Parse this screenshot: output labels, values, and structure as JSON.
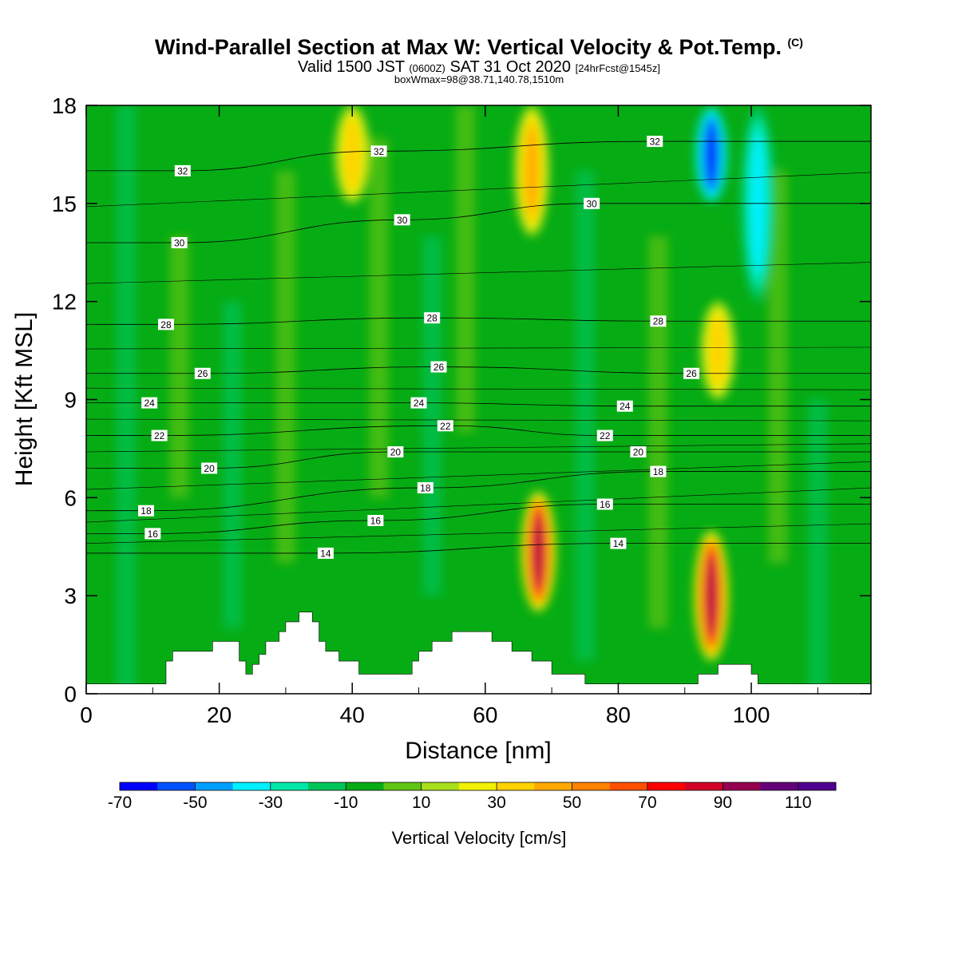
{
  "title": {
    "main": "Wind-Parallel Section at Max W: Vertical Velocity & Pot.Temp.",
    "copyright": "(C)",
    "valid_prefix": "Valid 1500 JST",
    "valid_zulu": "(0600Z)",
    "valid_date": "SAT 31 Oct 2020",
    "forecast": "[24hrFcst@1545z]",
    "boxwmax": "boxWmax=98@38.71,140.78,1510m"
  },
  "colors": {
    "background": "#ffffff",
    "base_fill": "#06ac14",
    "terrain": "#ffffff",
    "contour": "#000000"
  },
  "chart_data": {
    "type": "heatmap",
    "xlabel": "Distance [nm]",
    "ylabel": "Height [Kft MSL]",
    "xlim": [
      0,
      118
    ],
    "ylim": [
      0,
      18
    ],
    "xticks": [
      0,
      20,
      40,
      60,
      80,
      100
    ],
    "yticks": [
      0,
      3,
      6,
      9,
      12,
      15,
      18
    ],
    "colorbar": {
      "title": "Vertical Velocity [cm/s]",
      "tick_labels": [
        "-70",
        "-50",
        "-30",
        "-10",
        "10",
        "30",
        "50",
        "70",
        "90",
        "110"
      ],
      "bounds": [
        -70,
        120
      ],
      "step": 10,
      "colors": [
        "#0000ff",
        "#0050ff",
        "#00a0ff",
        "#00f0ff",
        "#00e7a8",
        "#00c45a",
        "#06ac14",
        "#60c412",
        "#a8e01c",
        "#f0f000",
        "#ffd200",
        "#ffaa00",
        "#ff8200",
        "#ff5000",
        "#ff0000",
        "#d20028",
        "#960050",
        "#64007a",
        "#500090"
      ]
    },
    "w_features": [
      {
        "x": 68,
        "y_bottom": 2.5,
        "y_top": 6.2,
        "peak": 98,
        "note": "max updraft"
      },
      {
        "x": 94,
        "y_bottom": 1.0,
        "y_top": 5.0,
        "peak": 90
      },
      {
        "x": 40,
        "y_bottom": 15.0,
        "y_top": 18.0,
        "peak": 30
      },
      {
        "x": 67,
        "y_bottom": 14.0,
        "y_top": 18.0,
        "peak": 40
      },
      {
        "x": 94,
        "y_bottom": 15.0,
        "y_top": 18.0,
        "peak": -60
      },
      {
        "x": 101,
        "y_bottom": 12.0,
        "y_top": 18.0,
        "peak": -30
      },
      {
        "x": 95,
        "y_bottom": 9.0,
        "y_top": 12.0,
        "peak": 30
      }
    ],
    "theta_contour_labels": [
      {
        "value": "32",
        "x": 14.5,
        "y": 16.0
      },
      {
        "value": "32",
        "x": 44.0,
        "y": 16.6
      },
      {
        "value": "32",
        "x": 85.5,
        "y": 16.9
      },
      {
        "value": "30",
        "x": 14.0,
        "y": 13.8
      },
      {
        "value": "30",
        "x": 47.5,
        "y": 14.5
      },
      {
        "value": "30",
        "x": 76.0,
        "y": 15.0
      },
      {
        "value": "28",
        "x": 12.0,
        "y": 11.3
      },
      {
        "value": "28",
        "x": 52.0,
        "y": 11.5
      },
      {
        "value": "28",
        "x": 86.0,
        "y": 11.4
      },
      {
        "value": "26",
        "x": 17.5,
        "y": 9.8
      },
      {
        "value": "26",
        "x": 53.0,
        "y": 10.0
      },
      {
        "value": "26",
        "x": 91.0,
        "y": 9.8
      },
      {
        "value": "24",
        "x": 9.5,
        "y": 8.9
      },
      {
        "value": "24",
        "x": 50.0,
        "y": 8.9
      },
      {
        "value": "24",
        "x": 81.0,
        "y": 8.8
      },
      {
        "value": "22",
        "x": 11.0,
        "y": 7.9
      },
      {
        "value": "22",
        "x": 54.0,
        "y": 8.2
      },
      {
        "value": "22",
        "x": 78.0,
        "y": 7.9
      },
      {
        "value": "20",
        "x": 18.5,
        "y": 6.9
      },
      {
        "value": "20",
        "x": 46.5,
        "y": 7.4
      },
      {
        "value": "20",
        "x": 83.0,
        "y": 7.4
      },
      {
        "value": "18",
        "x": 9.0,
        "y": 5.6
      },
      {
        "value": "18",
        "x": 51.0,
        "y": 6.3
      },
      {
        "value": "18",
        "x": 86.0,
        "y": 6.8
      },
      {
        "value": "16",
        "x": 10.0,
        "y": 4.9
      },
      {
        "value": "16",
        "x": 43.5,
        "y": 5.3
      },
      {
        "value": "16",
        "x": 78.0,
        "y": 5.8
      },
      {
        "value": "14",
        "x": 36.0,
        "y": 4.3
      },
      {
        "value": "14",
        "x": 80.0,
        "y": 4.6
      }
    ],
    "terrain": [
      [
        0,
        0.3
      ],
      [
        12,
        0.3
      ],
      [
        12,
        1.0
      ],
      [
        13,
        1.0
      ],
      [
        13,
        1.3
      ],
      [
        19,
        1.3
      ],
      [
        19,
        1.6
      ],
      [
        23,
        1.6
      ],
      [
        23,
        1.0
      ],
      [
        24,
        1.0
      ],
      [
        24,
        0.6
      ],
      [
        25,
        0.6
      ],
      [
        25,
        0.9
      ],
      [
        26,
        0.9
      ],
      [
        26,
        1.2
      ],
      [
        27,
        1.2
      ],
      [
        27,
        1.6
      ],
      [
        29,
        1.6
      ],
      [
        29,
        1.9
      ],
      [
        30,
        1.9
      ],
      [
        30,
        2.2
      ],
      [
        32,
        2.2
      ],
      [
        32,
        2.5
      ],
      [
        34,
        2.5
      ],
      [
        34,
        2.2
      ],
      [
        35,
        2.2
      ],
      [
        35,
        1.6
      ],
      [
        36,
        1.6
      ],
      [
        36,
        1.3
      ],
      [
        38,
        1.3
      ],
      [
        38,
        1.0
      ],
      [
        41,
        1.0
      ],
      [
        41,
        0.6
      ],
      [
        49,
        0.6
      ],
      [
        49,
        1.0
      ],
      [
        50,
        1.0
      ],
      [
        50,
        1.3
      ],
      [
        52,
        1.3
      ],
      [
        52,
        1.6
      ],
      [
        55,
        1.6
      ],
      [
        55,
        1.9
      ],
      [
        61,
        1.9
      ],
      [
        61,
        1.6
      ],
      [
        64,
        1.6
      ],
      [
        64,
        1.3
      ],
      [
        67,
        1.3
      ],
      [
        67,
        1.0
      ],
      [
        70,
        1.0
      ],
      [
        70,
        0.6
      ],
      [
        75,
        0.6
      ],
      [
        75,
        0.3
      ],
      [
        92,
        0.3
      ],
      [
        92,
        0.6
      ],
      [
        95,
        0.6
      ],
      [
        95,
        0.9
      ],
      [
        100,
        0.9
      ],
      [
        100,
        0.6
      ],
      [
        101,
        0.6
      ],
      [
        101,
        0.3
      ],
      [
        118,
        0.3
      ],
      [
        118,
        0
      ],
      [
        0,
        0
      ]
    ]
  }
}
